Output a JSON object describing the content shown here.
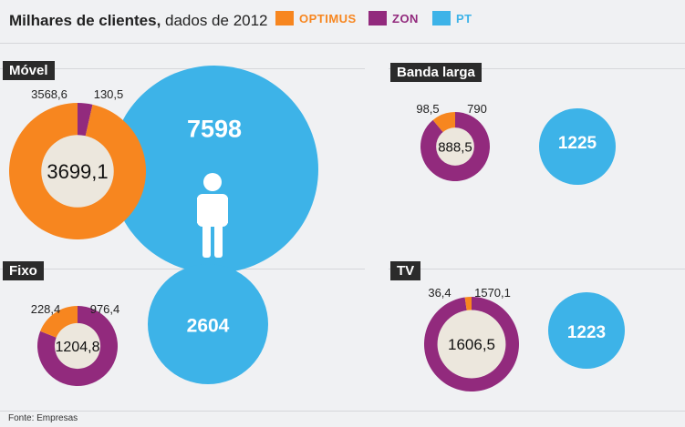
{
  "header": {
    "title_bold": "Milhares de clientes,",
    "title_rest": " dados de 2012"
  },
  "legend": [
    {
      "name": "OPTIMUS",
      "color": "#f7861f"
    },
    {
      "name": "ZON",
      "color": "#922a7d"
    },
    {
      "name": "PT",
      "color": "#3db3e8"
    }
  ],
  "colors": {
    "optimus": "#f7861f",
    "zon": "#922a7d",
    "pt": "#3db3e8",
    "hole": "#ece7dd"
  },
  "source": "Fonte: Empresas",
  "chart_data": [
    {
      "type": "pie",
      "title": "Móvel",
      "donut": {
        "optimus": 3568.6,
        "zon": 130.5,
        "total": 3699.1
      },
      "labels": {
        "optimus": "3568,6",
        "zon": "130,5",
        "total": "3699,1"
      },
      "pt": {
        "value": 7598,
        "label": "7598"
      },
      "icon": "person-icon"
    },
    {
      "type": "pie",
      "title": "Banda larga",
      "donut": {
        "optimus": 98.5,
        "zon": 790,
        "total": 888.5
      },
      "labels": {
        "optimus": "98,5",
        "zon": "790",
        "total": "888,5"
      },
      "pt": {
        "value": 1225,
        "label": "1225"
      }
    },
    {
      "type": "pie",
      "title": "Fixo",
      "donut": {
        "optimus": 228.4,
        "zon": 976.4,
        "total": 1204.8
      },
      "labels": {
        "optimus": "228,4",
        "zon": "976,4",
        "total": "1204,8"
      },
      "pt": {
        "value": 2604,
        "label": "2604"
      }
    },
    {
      "type": "pie",
      "title": "TV",
      "donut": {
        "optimus": 36.4,
        "zon": 1570.1,
        "total": 1606.5
      },
      "labels": {
        "optimus": "36,4",
        "zon": "1570,1",
        "total": "1606,5"
      },
      "pt": {
        "value": 1223,
        "label": "1223"
      }
    }
  ]
}
